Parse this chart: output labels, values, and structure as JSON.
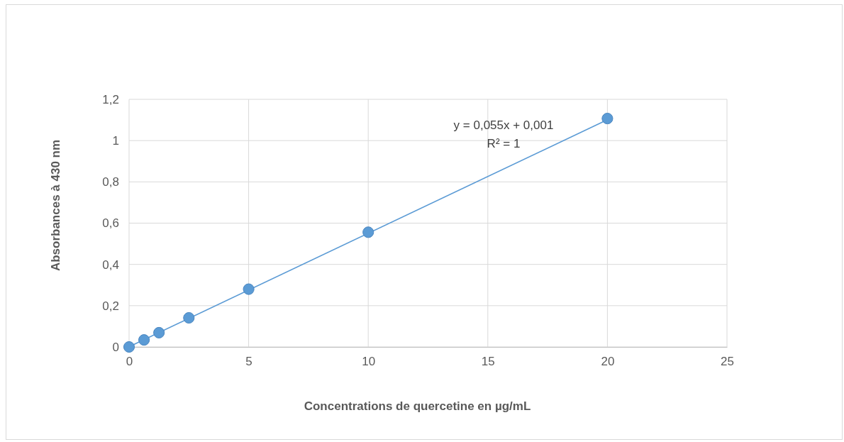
{
  "chart_data": {
    "type": "scatter",
    "xlabel": "Concentrations  de quercetine en µg/mL",
    "ylabel": "Absorbances à 430 nm",
    "xlim": [
      0,
      25
    ],
    "xticks": [
      0,
      5,
      10,
      15,
      20,
      25
    ],
    "ylim": [
      0,
      1.2
    ],
    "yticks": [
      0,
      {
        "value": 0.2,
        "label": "0,2"
      },
      {
        "value": 0.4,
        "label": "0,4"
      },
      {
        "value": 0.6,
        "label": "0,6"
      },
      {
        "value": 0.8,
        "label": "0,8"
      },
      1,
      {
        "value": 1.2,
        "label": "1,2"
      }
    ],
    "grid": true,
    "series": [
      {
        "type": "line",
        "color": "#5b9bd5",
        "x": [
          0,
          20
        ],
        "values": [
          0.001,
          1.101
        ]
      },
      {
        "marker": "circle",
        "color": "#5b9bd5",
        "x": [
          0,
          0.625,
          1.25,
          2.5,
          5,
          10,
          20
        ],
        "values": [
          0,
          0.034,
          0.069,
          0.141,
          0.28,
          0.556,
          1.107
        ]
      }
    ],
    "annotations": [
      "y = 0,055x + 0,001",
      "R² = 1"
    ]
  }
}
